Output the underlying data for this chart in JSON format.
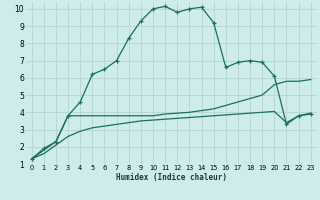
{
  "xlabel": "Humidex (Indice chaleur)",
  "bg_color": "#ceecea",
  "grid_color": "#b8d8d4",
  "line_color": "#1a6e62",
  "xlim": [
    -0.5,
    23.5
  ],
  "ylim": [
    1,
    10.4
  ],
  "xticks": [
    0,
    1,
    2,
    3,
    4,
    5,
    6,
    7,
    8,
    9,
    10,
    11,
    12,
    13,
    14,
    15,
    16,
    17,
    18,
    19,
    20,
    21,
    22,
    23
  ],
  "yticks": [
    1,
    2,
    3,
    4,
    5,
    6,
    7,
    8,
    9,
    10
  ],
  "main_x": [
    0,
    1,
    2,
    3,
    4,
    5,
    6,
    7,
    8,
    9,
    10,
    11,
    12,
    13,
    14,
    15,
    16,
    17,
    18,
    19,
    20,
    21,
    22,
    23
  ],
  "main_y": [
    1.3,
    1.9,
    2.3,
    3.8,
    4.6,
    6.2,
    6.5,
    7.0,
    8.3,
    9.3,
    10.0,
    10.15,
    9.8,
    10.0,
    10.1,
    9.2,
    6.6,
    6.9,
    7.0,
    6.9,
    6.1,
    3.3,
    3.8,
    3.9
  ],
  "line2_x": [
    0,
    1,
    2,
    3,
    4,
    5,
    6,
    7,
    8,
    9,
    10,
    11,
    12,
    13,
    14,
    15,
    16,
    17,
    18,
    19,
    20,
    21,
    22,
    23
  ],
  "line2_y": [
    1.3,
    1.8,
    2.3,
    3.8,
    3.8,
    3.8,
    3.8,
    3.8,
    3.8,
    3.8,
    3.8,
    3.9,
    3.95,
    4.0,
    4.1,
    4.2,
    4.4,
    4.6,
    4.8,
    5.0,
    5.6,
    5.8,
    5.8,
    5.9
  ],
  "line3_x": [
    0,
    1,
    2,
    3,
    4,
    5,
    6,
    7,
    8,
    9,
    10,
    11,
    12,
    13,
    14,
    15,
    16,
    17,
    18,
    19,
    20,
    21,
    22,
    23
  ],
  "line3_y": [
    1.3,
    1.6,
    2.1,
    2.6,
    2.9,
    3.1,
    3.2,
    3.3,
    3.4,
    3.5,
    3.55,
    3.6,
    3.65,
    3.7,
    3.75,
    3.8,
    3.85,
    3.9,
    3.95,
    4.0,
    4.05,
    3.4,
    3.8,
    3.95
  ]
}
